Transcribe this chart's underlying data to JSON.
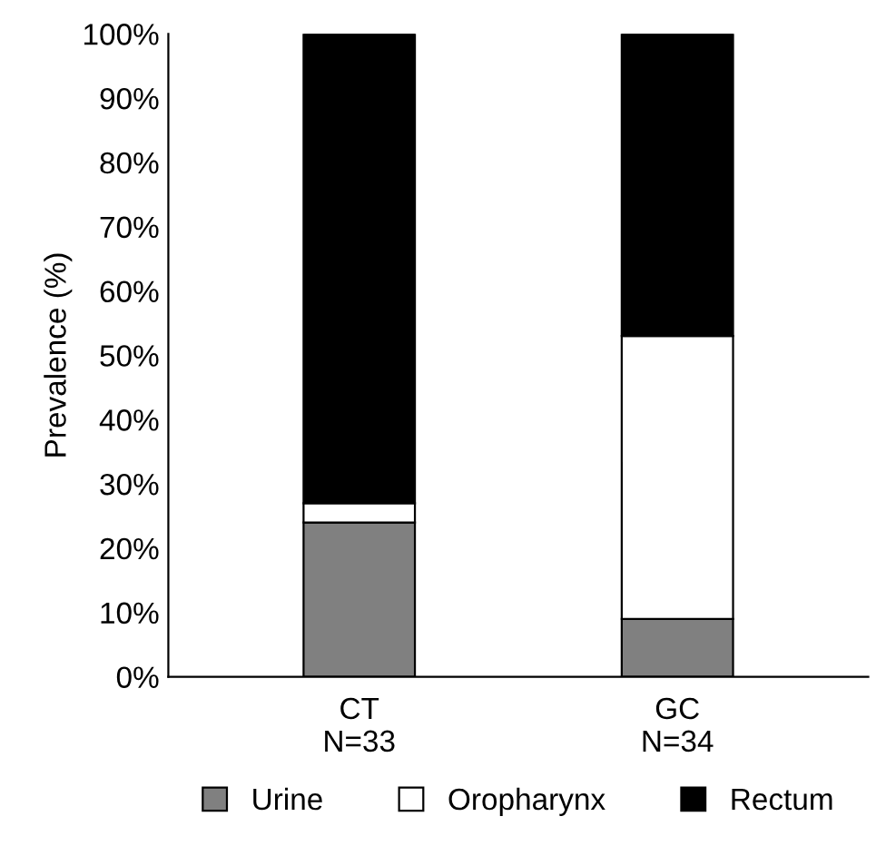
{
  "chart_data": {
    "type": "bar",
    "stacked": true,
    "ylabel": "Prevalence (%)",
    "categories": [
      "CT\nN=33",
      "GC\nN=34"
    ],
    "series": [
      {
        "name": "Urine",
        "color": "#808080",
        "values": [
          24,
          9
        ]
      },
      {
        "name": "Oropharynx",
        "color": "#ffffff",
        "values": [
          3,
          44
        ]
      },
      {
        "name": "Rectum",
        "color": "#000000",
        "values": [
          73,
          47
        ]
      }
    ],
    "ylim": [
      0,
      100
    ],
    "yticks": [
      {
        "value": 0,
        "label": "0%"
      },
      {
        "value": 10,
        "label": "10%"
      },
      {
        "value": 20,
        "label": "20%"
      },
      {
        "value": 30,
        "label": "30%"
      },
      {
        "value": 40,
        "label": "40%"
      },
      {
        "value": 50,
        "label": "50%"
      },
      {
        "value": 60,
        "label": "60%"
      },
      {
        "value": 70,
        "label": "70%"
      },
      {
        "value": 80,
        "label": "80%"
      },
      {
        "value": 90,
        "label": "90%"
      },
      {
        "value": 100,
        "label": "100%"
      }
    ],
    "grid": false,
    "legend": "bottom"
  }
}
